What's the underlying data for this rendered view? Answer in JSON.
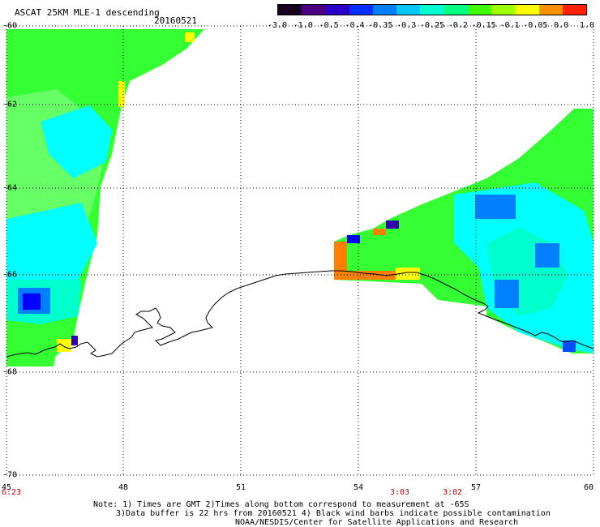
{
  "header": {
    "title": "ASCAT 25KM MLE-1 descending",
    "date": "20160521"
  },
  "colorbar": {
    "labels": [
      "-3.0",
      "-1.0",
      "-0.5",
      "-0.4",
      "-0.35",
      "-0.3",
      "-0.25",
      "-0.2",
      "-0.15",
      "-0.1",
      "-0.05",
      "0.0",
      "1.0"
    ],
    "colors": [
      "#1a0020",
      "#4b0082",
      "#2a00c8",
      "#0030ff",
      "#0080ff",
      "#00c8ff",
      "#00ffd0",
      "#00ff80",
      "#40ff00",
      "#a0ff00",
      "#ffff00",
      "#ff9000",
      "#ff2000"
    ]
  },
  "axes": {
    "latitudes": [
      "-60",
      "-62",
      "-64",
      "-66",
      "-68",
      "-70"
    ],
    "longitudes": [
      "45",
      "48",
      "51",
      "54",
      "57",
      "60"
    ]
  },
  "time_labels": [
    "6:23",
    "3:03",
    "3:02"
  ],
  "notes": [
    "Note: 1) Times are GMT 2)Times along bottom correspond to measurement at -65S",
    "3)Data buffer is 22 hrs from 20160521 4) Black wind barbs indicate possible contamination",
    "NOAA/NESDIS/Center for Satellite Applications and Research"
  ],
  "palette": {
    "green": "#33ff33",
    "lightgreen": "#66ff66",
    "cyan": "#00ffff",
    "teal": "#00ffcc",
    "blue": "#0080ff",
    "darkblue": "#0000ff",
    "yellow": "#ffff00",
    "orange": "#ff8000"
  }
}
